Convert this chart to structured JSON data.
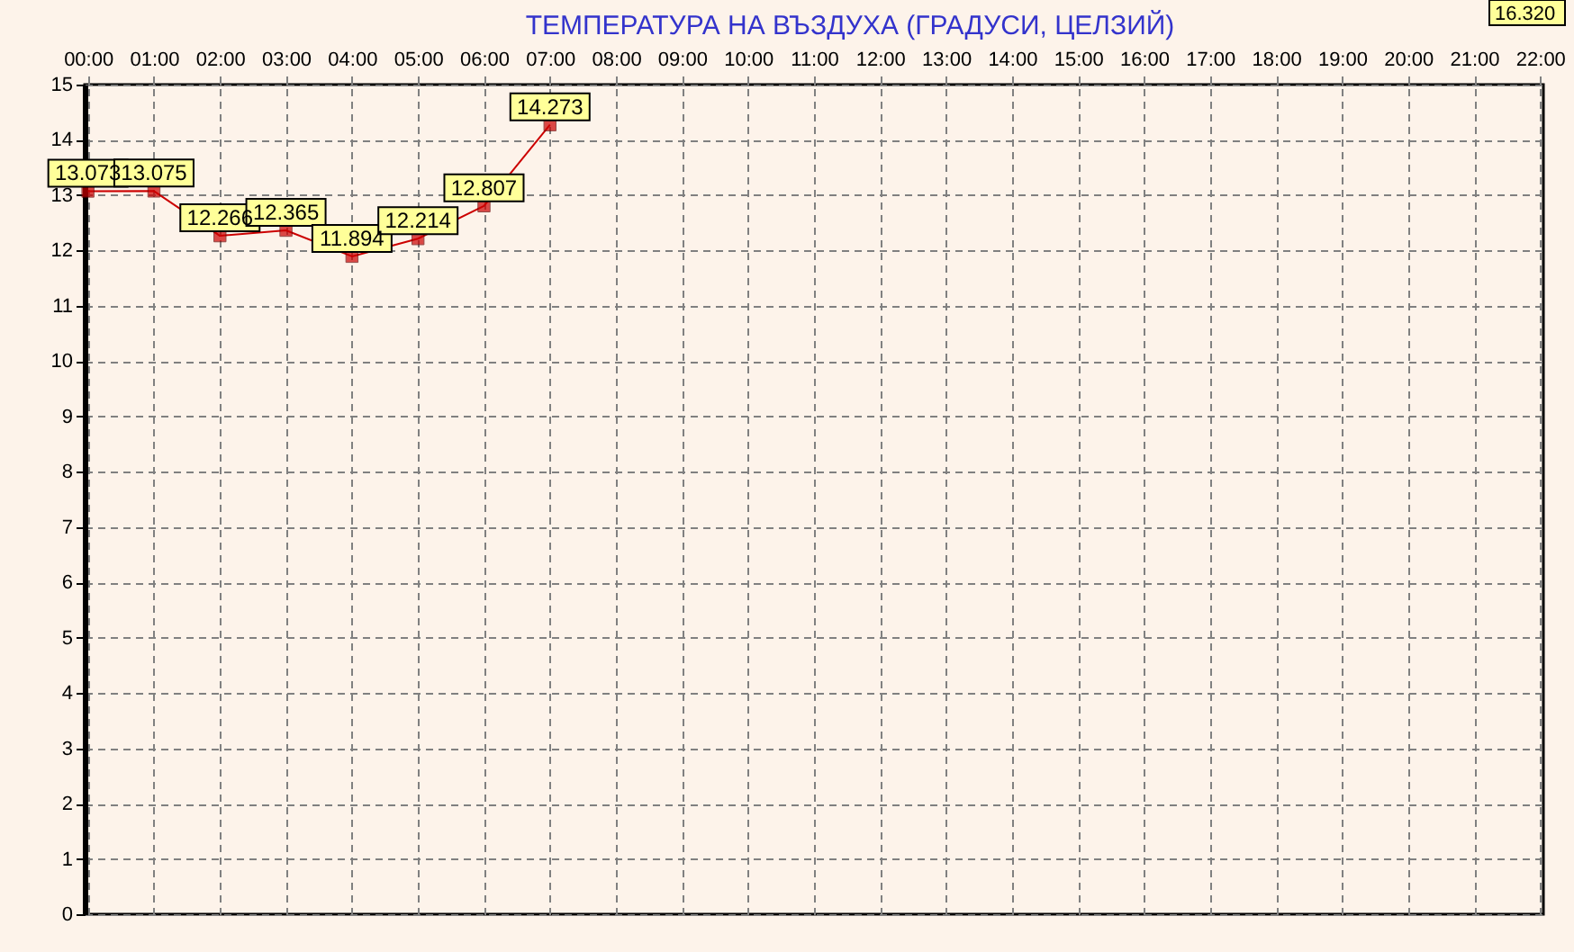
{
  "chart_data": {
    "type": "line",
    "title": "ТЕМПЕРАТУРА НА ВЪЗДУХА  (ГРАДУСИ, ЦЕЛЗИЙ)",
    "categories": [
      "00:00",
      "01:00",
      "02:00",
      "03:00",
      "04:00",
      "05:00",
      "06:00",
      "07:00",
      "08:00",
      "09:00",
      "10:00",
      "11:00",
      "12:00",
      "13:00",
      "14:00",
      "15:00",
      "16:00",
      "17:00",
      "18:00",
      "19:00",
      "20:00",
      "21:00",
      "22:00"
    ],
    "series": [
      {
        "color": "#cc0000",
        "values": [
          13.073,
          13.075,
          12.266,
          12.365,
          11.894,
          12.214,
          12.807,
          14.273,
          null,
          null,
          null,
          null,
          null,
          null,
          null,
          null,
          null,
          null,
          null,
          null,
          null,
          null,
          null
        ]
      }
    ],
    "ylim": [
      0,
      15
    ],
    "yticks": [
      0,
      1,
      2,
      3,
      4,
      5,
      6,
      7,
      8,
      9,
      10,
      11,
      12,
      13,
      14,
      15
    ],
    "grid": true,
    "marker": "square",
    "data_labels": true,
    "annotations": [
      "16.320"
    ]
  }
}
